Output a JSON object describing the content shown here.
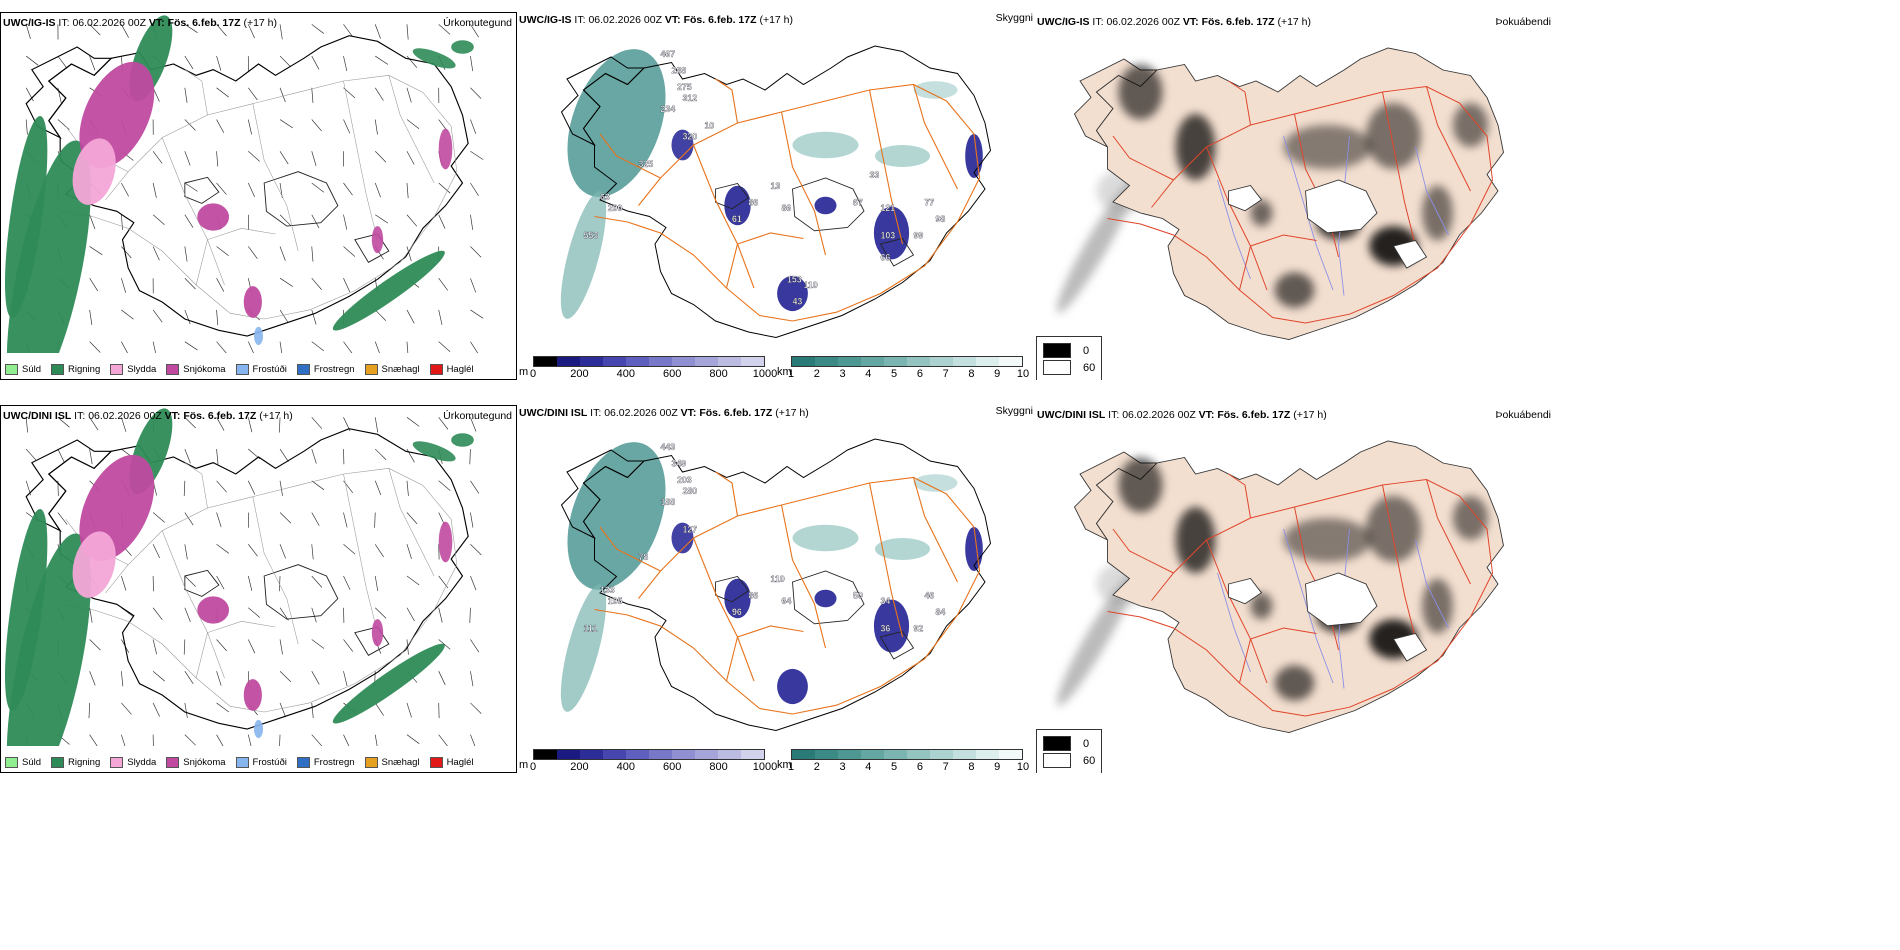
{
  "rows": [
    {
      "model": "UWC/IG-IS",
      "it_label": "IT:",
      "it_value": "06.02.2026 00Z",
      "vt_label": "VT:",
      "vt_value": "Fös. 6.feb. 17Z",
      "lead": "(+17 h)",
      "labels": [
        "467",
        "288",
        "312",
        "275",
        "234",
        "320",
        "325",
        "63",
        "200",
        "553",
        "13",
        "86",
        "61",
        "86",
        "67",
        "121",
        "77",
        "98",
        "103",
        "99",
        "66",
        "33",
        "153",
        "110",
        "43",
        "10"
      ]
    },
    {
      "model": "UWC/DINI ISL",
      "it_label": "IT:",
      "it_value": "06.02.2026 00Z",
      "vt_label": "VT:",
      "vt_value": "Fös. 6.feb. 17Z",
      "lead": "(+17 h)",
      "labels": [
        "443",
        "349",
        "280",
        "203",
        "188",
        "127",
        "78",
        "133",
        "105",
        "111",
        "110",
        "86",
        "96",
        "64",
        "50",
        "34",
        "46",
        "84",
        "36",
        "92"
      ]
    }
  ],
  "panel_names": {
    "precip": "Úrkomutegund",
    "cloud": "Skyggni",
    "fog": "Þokuábendi"
  },
  "precip_legend": [
    {
      "label": "Súld",
      "color": "#90ee90"
    },
    {
      "label": "Rigning",
      "color": "#2e8b57"
    },
    {
      "label": "Slydda",
      "color": "#f4a6d7"
    },
    {
      "label": "Snjókoma",
      "color": "#c04aa0"
    },
    {
      "label": "Frostúði",
      "color": "#87b5f0"
    },
    {
      "label": "Frostregn",
      "color": "#2f6fc4"
    },
    {
      "label": "Snæhagl",
      "color": "#e6a020"
    },
    {
      "label": "Haglél",
      "color": "#e01818"
    }
  ],
  "colorbar_m": {
    "unit": "m",
    "ticks": [
      "0",
      "200",
      "400",
      "600",
      "800",
      "1000"
    ],
    "colors": [
      "#000000",
      "#1a1a80",
      "#2d2d9a",
      "#4646ae",
      "#5f5fbf",
      "#7878c8",
      "#8f8fd1",
      "#a5a5da",
      "#bcbce3",
      "#d2d2ec"
    ]
  },
  "colorbar_km": {
    "unit": "km",
    "ticks": [
      "1",
      "2",
      "3",
      "4",
      "5",
      "6",
      "7",
      "8",
      "9",
      "10"
    ],
    "colors": [
      "#2a7a78",
      "#3b8a86",
      "#4e9894",
      "#64a6a2",
      "#7bb5b1",
      "#93c4c0",
      "#abd2cf",
      "#c4e0de",
      "#dcefed",
      "#f2f9f8"
    ]
  },
  "fog_legend": [
    {
      "value": "0",
      "color": "#000000"
    },
    {
      "value": "60",
      "color": "#ffffff"
    }
  ],
  "colors": {
    "land": "#f3dfd0",
    "roads": "#e8731c",
    "rivers": "#8a8ee6",
    "rain": "#2e8b57",
    "snow": "#c04aa0",
    "coast": "#000000"
  }
}
